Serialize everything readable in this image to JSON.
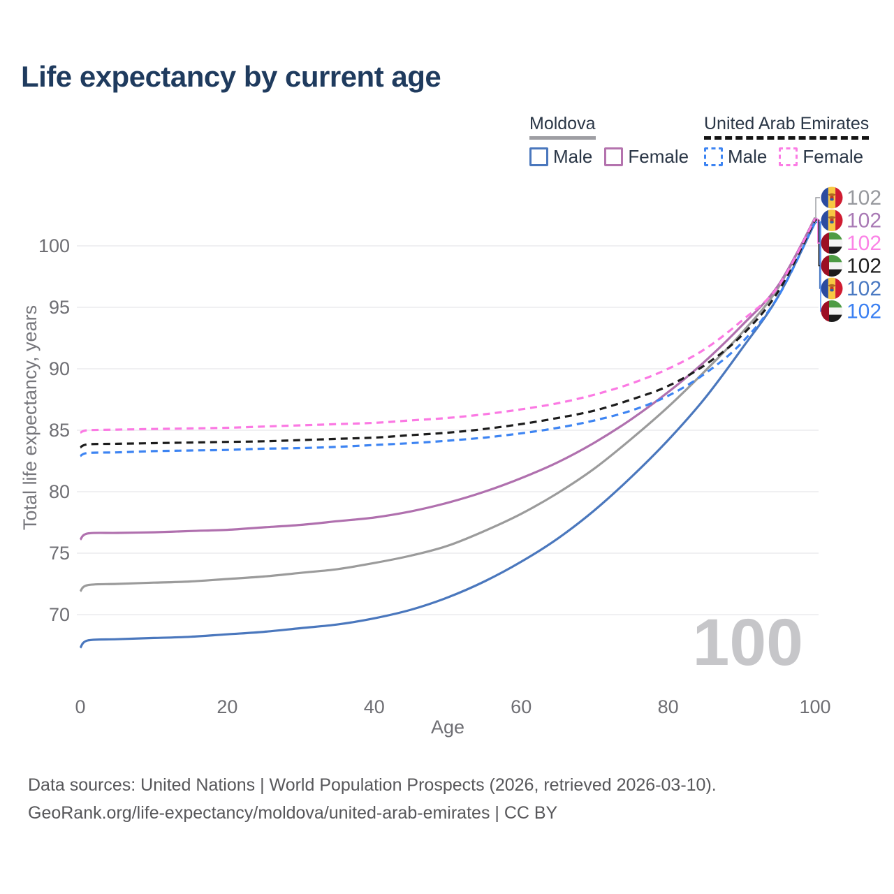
{
  "title": "Life expectancy by current age",
  "legend": {
    "groups": [
      {
        "label": "Moldova",
        "line_style": "solid",
        "line_color": "#9e9ea3",
        "items": [
          {
            "label": "Male",
            "swatch_color": "#4a77bd",
            "swatch_style": "solid"
          },
          {
            "label": "Female",
            "swatch_color": "#b473ae",
            "swatch_style": "solid"
          }
        ]
      },
      {
        "label": "United Arab Emirates",
        "line_style": "dashed",
        "line_color": "#141414",
        "items": [
          {
            "label": "Male",
            "swatch_color": "#3d84f2",
            "swatch_style": "dashed"
          },
          {
            "label": "Female",
            "swatch_color": "#fb7ce4",
            "swatch_style": "dashed"
          }
        ]
      }
    ]
  },
  "chart_data": {
    "type": "line",
    "title": "Life expectancy by current age",
    "xlabel": "Age",
    "ylabel": "Total life expectancy, years",
    "unit": "years",
    "x_ticks": [
      0,
      20,
      40,
      60,
      80,
      100
    ],
    "y_ticks": [
      70,
      75,
      80,
      85,
      90,
      95,
      100
    ],
    "xlim": [
      0,
      100
    ],
    "ylim": [
      65,
      104
    ],
    "grid": "horizontal-only",
    "age_indicator_watermark": "100",
    "x": [
      0,
      1,
      5,
      10,
      15,
      20,
      25,
      30,
      35,
      40,
      45,
      50,
      55,
      60,
      65,
      70,
      75,
      80,
      85,
      90,
      95,
      100
    ],
    "series": [
      {
        "name": "Moldova Male",
        "country": "Moldova",
        "sex": "male",
        "flag": "md",
        "color": "#4a77bd",
        "dashed": false,
        "label_row": 4,
        "end_label": "102",
        "end_label_color": "#4a79c2",
        "values": [
          67.3,
          67.9,
          68.0,
          68.1,
          68.2,
          68.4,
          68.6,
          68.9,
          69.2,
          69.7,
          70.4,
          71.4,
          72.7,
          74.3,
          76.2,
          78.5,
          81.2,
          84.2,
          87.6,
          91.6,
          95.9,
          101.9
        ]
      },
      {
        "name": "Moldova (both sexes)",
        "country": "Moldova",
        "sex": "both",
        "flag": "md",
        "color": "#9b9b9b",
        "dashed": false,
        "label_row": 0,
        "end_label": "102",
        "end_label_color": "#97999e",
        "values": [
          71.9,
          72.4,
          72.5,
          72.6,
          72.7,
          72.9,
          73.1,
          73.4,
          73.7,
          74.2,
          74.8,
          75.6,
          76.8,
          78.2,
          79.9,
          81.9,
          84.3,
          86.9,
          89.8,
          92.9,
          96.6,
          102.3
        ]
      },
      {
        "name": "Moldova Female",
        "country": "Moldova",
        "sex": "female",
        "flag": "md",
        "color": "#b070ae",
        "dashed": false,
        "label_row": 1,
        "end_label": "102",
        "end_label_color": "#a97ab5",
        "values": [
          76.1,
          76.6,
          76.65,
          76.7,
          76.8,
          76.9,
          77.1,
          77.3,
          77.6,
          77.9,
          78.4,
          79.1,
          80.0,
          81.1,
          82.4,
          84.0,
          85.9,
          88.1,
          90.6,
          93.5,
          96.8,
          102.25
        ]
      },
      {
        "name": "United Arab Emirates Male",
        "country": "United Arab Emirates",
        "sex": "male",
        "flag": "ae",
        "color": "#3d84f2",
        "dashed": true,
        "label_row": 5,
        "end_label": "102",
        "end_label_color": "#3b80f2",
        "values": [
          82.9,
          83.15,
          83.2,
          83.3,
          83.35,
          83.4,
          83.5,
          83.55,
          83.65,
          83.8,
          83.95,
          84.15,
          84.4,
          84.75,
          85.2,
          85.8,
          86.6,
          87.8,
          89.6,
          92.1,
          95.9,
          101.95
        ]
      },
      {
        "name": "United Arab Emirates (both sexes)",
        "country": "United Arab Emirates",
        "sex": "both",
        "flag": "ae",
        "color": "#1c1c1c",
        "dashed": true,
        "label_row": 3,
        "end_label": "102",
        "end_label_color": "#1f1f1f",
        "values": [
          83.6,
          83.85,
          83.9,
          83.95,
          84.0,
          84.05,
          84.1,
          84.2,
          84.3,
          84.4,
          84.6,
          84.8,
          85.1,
          85.5,
          86.0,
          86.6,
          87.5,
          88.6,
          90.3,
          92.7,
          96.3,
          102.1
        ]
      },
      {
        "name": "United Arab Emirates Female",
        "country": "United Arab Emirates",
        "sex": "female",
        "flag": "ae",
        "color": "#fb79e3",
        "dashed": true,
        "label_row": 2,
        "end_label": "102",
        "end_label_color": "#fb83e6",
        "values": [
          84.8,
          85.0,
          85.05,
          85.1,
          85.15,
          85.2,
          85.3,
          85.4,
          85.5,
          85.6,
          85.8,
          86.0,
          86.3,
          86.7,
          87.2,
          87.9,
          88.8,
          90.0,
          91.6,
          93.9,
          96.7,
          102.2
        ]
      }
    ]
  },
  "footer": {
    "line1": "Data sources: United Nations | World Population Prospects (2026, retrieved 2026-03-10).",
    "line2": "GeoRank.org/life-expectancy/moldova/united-arab-emirates | CC BY"
  }
}
